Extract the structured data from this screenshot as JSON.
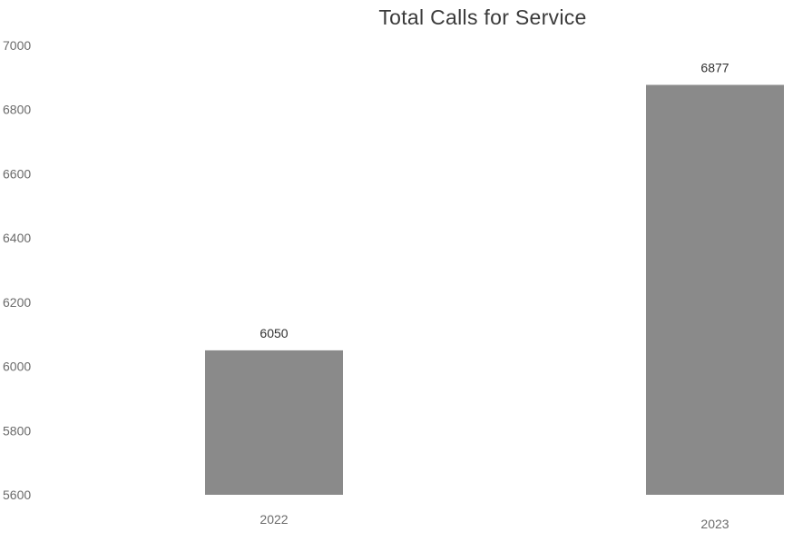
{
  "chart_data": {
    "type": "bar",
    "title": "Total Calls for Service",
    "categories": [
      "2022",
      "2023"
    ],
    "values": [
      6050,
      6877
    ],
    "data_labels": [
      "6050",
      "6877"
    ],
    "xlabel": "",
    "ylabel": "",
    "ylim": [
      5600,
      7000
    ],
    "yticks": [
      "5600",
      "5800",
      "6000",
      "6200",
      "6400",
      "6600",
      "6800",
      "7000"
    ],
    "grid": false,
    "legend": "none",
    "bar_color": "#8a8a8a"
  }
}
